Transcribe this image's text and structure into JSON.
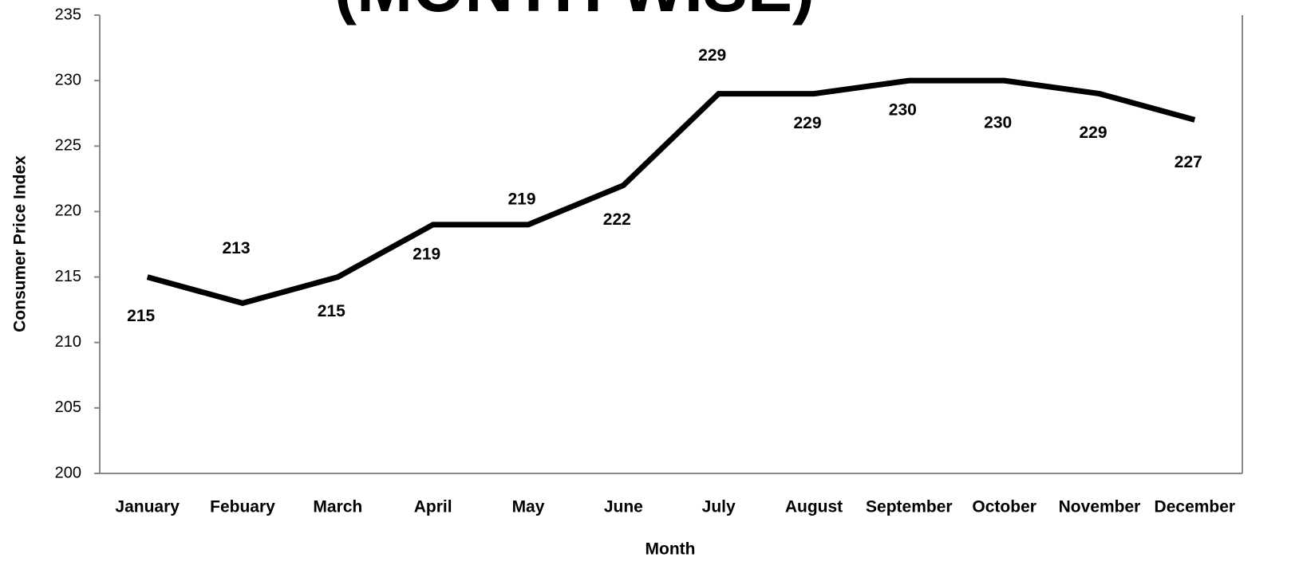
{
  "chart_data": {
    "type": "line",
    "title": "(MONTH WISE)",
    "x_label": "Month",
    "y_label": "Consumer Price Index",
    "categories": [
      "January",
      "Febuary",
      "March",
      "April",
      "May",
      "June",
      "July",
      "August",
      "September",
      "October",
      "November",
      "December"
    ],
    "values": [
      215,
      213,
      215,
      219,
      219,
      222,
      229,
      229,
      230,
      230,
      229,
      227
    ],
    "color": "#000000",
    "ylim": [
      200,
      235
    ],
    "yticks": [
      200,
      205,
      210,
      215,
      220,
      225,
      230,
      235
    ],
    "grid": false
  }
}
